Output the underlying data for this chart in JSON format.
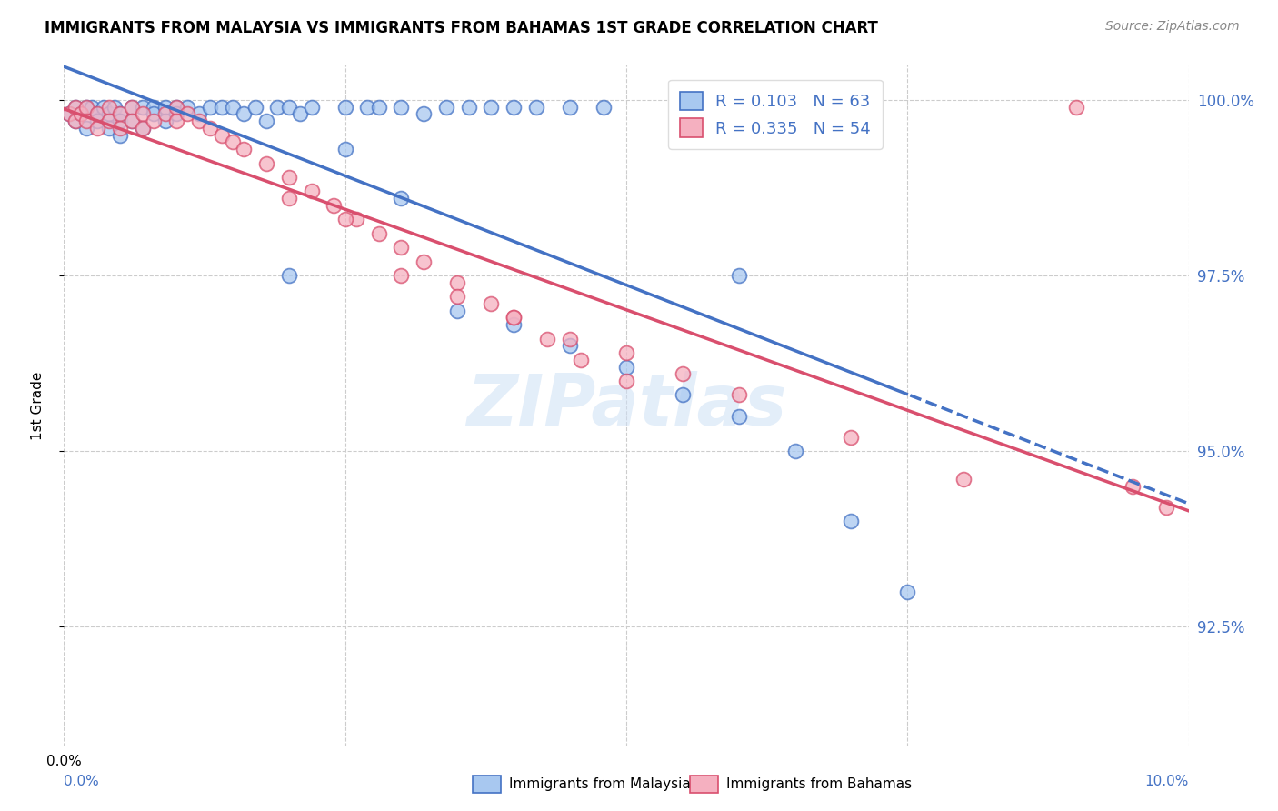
{
  "title": "IMMIGRANTS FROM MALAYSIA VS IMMIGRANTS FROM BAHAMAS 1ST GRADE CORRELATION CHART",
  "source": "Source: ZipAtlas.com",
  "ylabel": "1st Grade",
  "ytick_labels": [
    "100.0%",
    "97.5%",
    "95.0%",
    "92.5%"
  ],
  "ytick_values": [
    1.0,
    0.975,
    0.95,
    0.925
  ],
  "xlim": [
    0.0,
    0.1
  ],
  "ylim": [
    0.908,
    1.005
  ],
  "color_malaysia": "#a8c8f0",
  "color_bahamas": "#f5b0c0",
  "trendline_color_malaysia": "#4472c4",
  "trendline_color_bahamas": "#d94f6e",
  "watermark": "ZIPatlas",
  "legend_entries": [
    {
      "label": "R = 0.103   N = 63",
      "color": "#a8c8f0",
      "edge": "#4472c4"
    },
    {
      "label": "R = 0.335   N = 54",
      "color": "#f5b0c0",
      "edge": "#d94f6e"
    }
  ],
  "bottom_legend": [
    {
      "label": "Immigrants from Malaysia",
      "color": "#a8c8f0",
      "edge": "#4472c4"
    },
    {
      "label": "Immigrants from Bahamas",
      "color": "#f5b0c0",
      "edge": "#d94f6e"
    }
  ],
  "malaysia_x": [
    0.0005,
    0.001,
    0.001,
    0.0015,
    0.002,
    0.002,
    0.0025,
    0.003,
    0.003,
    0.0035,
    0.004,
    0.004,
    0.0045,
    0.005,
    0.005,
    0.005,
    0.006,
    0.006,
    0.007,
    0.007,
    0.008,
    0.008,
    0.009,
    0.009,
    0.01,
    0.01,
    0.011,
    0.012,
    0.013,
    0.014,
    0.015,
    0.016,
    0.017,
    0.018,
    0.019,
    0.02,
    0.021,
    0.022,
    0.025,
    0.027,
    0.028,
    0.03,
    0.032,
    0.034,
    0.036,
    0.038,
    0.04,
    0.042,
    0.045,
    0.048,
    0.02,
    0.025,
    0.03,
    0.035,
    0.04,
    0.045,
    0.05,
    0.055,
    0.06,
    0.065,
    0.06,
    0.07,
    0.075
  ],
  "malaysia_y": [
    0.998,
    0.999,
    0.997,
    0.998,
    0.999,
    0.996,
    0.999,
    0.998,
    0.997,
    0.999,
    0.998,
    0.996,
    0.999,
    0.998,
    0.997,
    0.995,
    0.999,
    0.997,
    0.999,
    0.996,
    0.999,
    0.998,
    0.999,
    0.997,
    0.999,
    0.998,
    0.999,
    0.998,
    0.999,
    0.999,
    0.999,
    0.998,
    0.999,
    0.997,
    0.999,
    0.999,
    0.998,
    0.999,
    0.999,
    0.999,
    0.999,
    0.999,
    0.998,
    0.999,
    0.999,
    0.999,
    0.999,
    0.999,
    0.999,
    0.999,
    0.975,
    0.993,
    0.986,
    0.97,
    0.968,
    0.965,
    0.962,
    0.958,
    0.955,
    0.95,
    0.975,
    0.94,
    0.93
  ],
  "bahamas_x": [
    0.0005,
    0.001,
    0.001,
    0.0015,
    0.002,
    0.002,
    0.003,
    0.003,
    0.004,
    0.004,
    0.005,
    0.005,
    0.006,
    0.006,
    0.007,
    0.007,
    0.008,
    0.009,
    0.01,
    0.01,
    0.011,
    0.012,
    0.013,
    0.014,
    0.015,
    0.016,
    0.018,
    0.02,
    0.022,
    0.024,
    0.026,
    0.028,
    0.03,
    0.032,
    0.035,
    0.038,
    0.04,
    0.043,
    0.046,
    0.05,
    0.03,
    0.035,
    0.04,
    0.045,
    0.05,
    0.055,
    0.06,
    0.07,
    0.08,
    0.09,
    0.02,
    0.025,
    0.095,
    0.098
  ],
  "bahamas_y": [
    0.998,
    0.999,
    0.997,
    0.998,
    0.999,
    0.997,
    0.998,
    0.996,
    0.999,
    0.997,
    0.998,
    0.996,
    0.999,
    0.997,
    0.998,
    0.996,
    0.997,
    0.998,
    0.999,
    0.997,
    0.998,
    0.997,
    0.996,
    0.995,
    0.994,
    0.993,
    0.991,
    0.989,
    0.987,
    0.985,
    0.983,
    0.981,
    0.979,
    0.977,
    0.974,
    0.971,
    0.969,
    0.966,
    0.963,
    0.96,
    0.975,
    0.972,
    0.969,
    0.966,
    0.964,
    0.961,
    0.958,
    0.952,
    0.946,
    0.999,
    0.986,
    0.983,
    0.945,
    0.942
  ]
}
